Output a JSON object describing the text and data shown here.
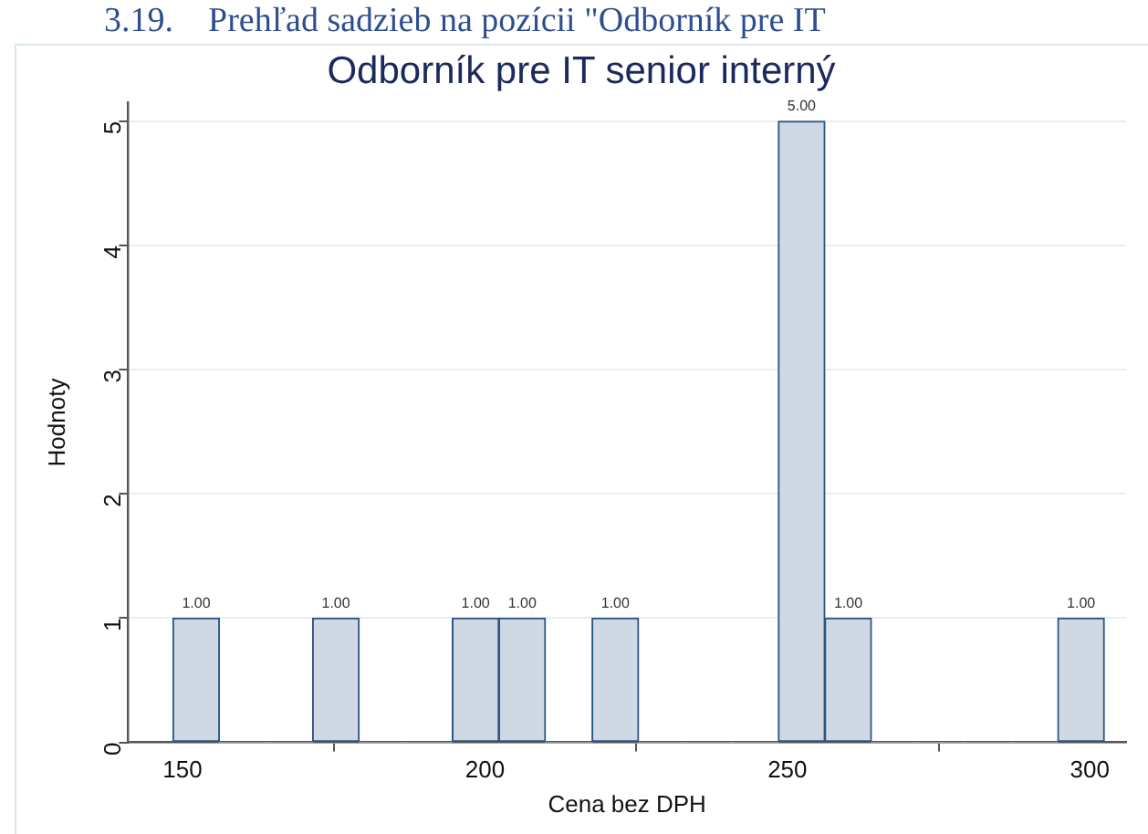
{
  "chart_data": {
    "type": "histogram",
    "title": "Odborník pre IT senior interný",
    "xlabel": "Cena bez DPH",
    "ylabel": "Hodnoty",
    "annotations": [
      "3.19.    Prehľad sadzieb na pozícii \"Odborník pre IT"
    ],
    "bins": [
      148.4,
      156.1,
      163.8,
      171.5,
      179.2,
      186.9,
      194.6,
      202.3,
      210.0,
      217.7,
      225.4,
      233.1,
      240.8,
      248.5,
      256.2,
      263.9,
      271.6,
      279.3,
      287.0,
      294.7,
      302.4
    ],
    "values": [
      1,
      0,
      0,
      1,
      0,
      0,
      1,
      1,
      0,
      1,
      0,
      0,
      0,
      5,
      1,
      0,
      0,
      0,
      0,
      1
    ],
    "value_labels": [
      "1.00",
      null,
      null,
      "1.00",
      null,
      null,
      "1.00",
      "1.00",
      null,
      "1.00",
      null,
      null,
      null,
      "5.00",
      "1.00",
      null,
      null,
      null,
      null,
      "1.00"
    ],
    "color": "#d0d9e3",
    "xlim": [
      141,
      306
    ],
    "ylim": [
      0,
      5.15
    ],
    "xticks": [
      150,
      200,
      250,
      300
    ],
    "yticks": [
      0,
      1,
      2,
      3,
      4,
      5
    ],
    "grid": "y"
  }
}
